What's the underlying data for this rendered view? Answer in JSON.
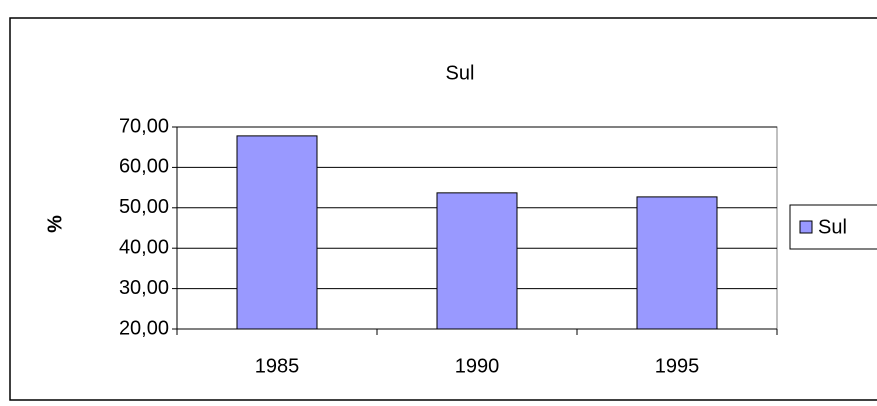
{
  "chart_data": {
    "type": "bar",
    "title": "Sul",
    "y_label": "%",
    "categories": [
      "1985",
      "1990",
      "1995"
    ],
    "series": [
      {
        "name": "Sul",
        "color": "#9999ff",
        "values": [
          67.8,
          53.7,
          52.7
        ]
      }
    ],
    "ylim": [
      20,
      70
    ],
    "yticks": [
      {
        "value": 20,
        "label": "20,00"
      },
      {
        "value": 30,
        "label": "30,00"
      },
      {
        "value": 40,
        "label": "40,00"
      },
      {
        "value": 50,
        "label": "50,00"
      },
      {
        "value": 60,
        "label": "60,00"
      },
      {
        "value": 70,
        "label": "70,00"
      }
    ],
    "grid": true,
    "legend": "right"
  }
}
